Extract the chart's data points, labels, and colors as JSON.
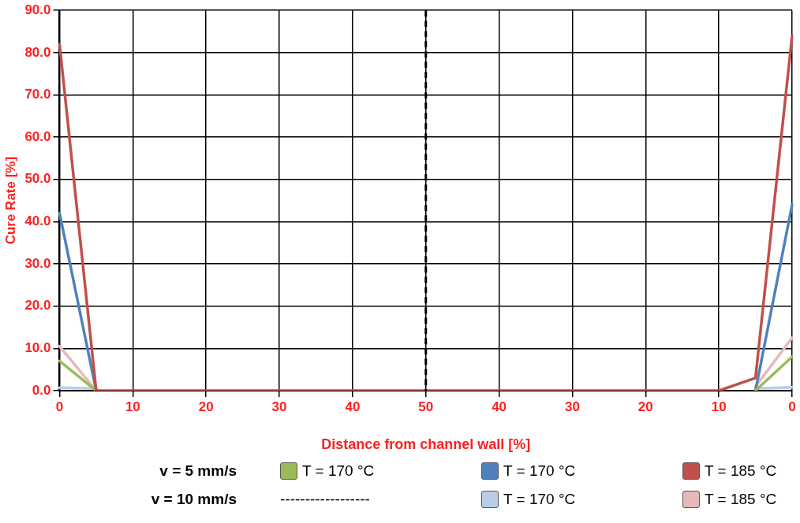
{
  "chart_data": {
    "type": "line",
    "xlabel": "Distance from channel wall [%]",
    "ylabel": "Cure Rate [%]",
    "categories": [
      "0",
      null,
      "10",
      null,
      "20",
      null,
      "30",
      null,
      "40",
      null,
      "50",
      null,
      "40",
      null,
      "30",
      null,
      "20",
      null,
      "10",
      null,
      "0"
    ],
    "series": [
      {
        "name": "T = 170 °C",
        "color": "#9bbb59",
        "values": [
          7,
          0,
          null,
          null,
          null,
          null,
          null,
          null,
          null,
          null,
          null,
          null,
          null,
          null,
          null,
          null,
          null,
          null,
          null,
          0,
          8
        ]
      },
      {
        "name": "T = 170 °C",
        "color": "#4f81bd",
        "values": [
          42,
          0,
          null,
          null,
          null,
          null,
          null,
          null,
          null,
          null,
          null,
          null,
          null,
          null,
          null,
          null,
          null,
          null,
          null,
          0,
          44
        ]
      },
      {
        "name": "T = 185 °C",
        "color": "#c0504d",
        "values": [
          82,
          0,
          0,
          0,
          0,
          0,
          0,
          0,
          0,
          0,
          0,
          0,
          0,
          0,
          0,
          0,
          0,
          0,
          0,
          3,
          84
        ]
      },
      {
        "name": "T = 170 °C",
        "color": "#b9cde5",
        "values": [
          0.7,
          0.5,
          null,
          null,
          null,
          null,
          null,
          null,
          null,
          null,
          null,
          null,
          null,
          null,
          null,
          null,
          null,
          null,
          null,
          0.5,
          0.8
        ]
      },
      {
        "name": "T = 185 °C",
        "color": "#e6b9b8",
        "values": [
          10.5,
          0,
          null,
          null,
          null,
          null,
          null,
          null,
          null,
          null,
          null,
          null,
          null,
          null,
          null,
          null,
          null,
          null,
          null,
          1,
          12.5
        ]
      }
    ],
    "ylim": [
      0,
      90
    ],
    "yticks": [
      {
        "value": 0,
        "label": "0.0"
      },
      {
        "value": 10,
        "label": "10.0"
      },
      {
        "value": 20,
        "label": "20.0"
      },
      {
        "value": 30,
        "label": "30.0"
      },
      {
        "value": 40,
        "label": "40.0"
      },
      {
        "value": 50,
        "label": "50.0"
      },
      {
        "value": 60,
        "label": "60.0"
      },
      {
        "value": 70,
        "label": "70.0"
      },
      {
        "value": 80,
        "label": "80.0"
      },
      {
        "value": 90,
        "label": "90.0"
      }
    ],
    "ref_lines": [
      {
        "axis": "x",
        "value": "50",
        "color": "#000000",
        "line_style": "dashed"
      }
    ],
    "annotations": [
      "v = 5 mm/s",
      "v = 10 mm/s",
      "------------------"
    ],
    "grid": true,
    "legend": "bottom",
    "marker": "none",
    "line_style": "solid"
  }
}
